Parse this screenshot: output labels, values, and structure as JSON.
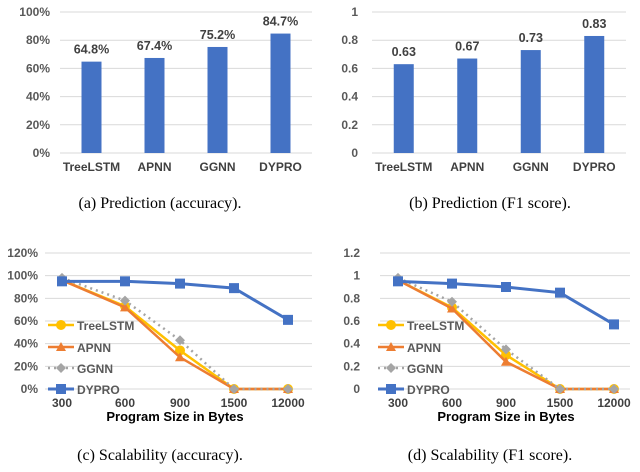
{
  "chart_data": [
    {
      "type": "bar",
      "caption": "(a) Prediction (accuracy).",
      "categories": [
        "TreeLSTM",
        "APNN",
        "GGNN",
        "DYPRO"
      ],
      "values": [
        64.8,
        67.4,
        75.2,
        84.7
      ],
      "data_labels": [
        "64.8%",
        "67.4%",
        "75.2%",
        "84.7%"
      ],
      "ylim": [
        0,
        100
      ],
      "yticks": [
        "0%",
        "20%",
        "40%",
        "60%",
        "80%",
        "100%"
      ],
      "grid": true,
      "color": "#4472C4"
    },
    {
      "type": "bar",
      "caption": "(b) Prediction (F1 score).",
      "categories": [
        "TreeLSTM",
        "APNN",
        "GGNN",
        "DYPRO"
      ],
      "values": [
        0.63,
        0.67,
        0.73,
        0.83
      ],
      "data_labels": [
        "0.63",
        "0.67",
        "0.73",
        "0.83"
      ],
      "ylim": [
        0,
        1
      ],
      "yticks": [
        "0",
        "0.2",
        "0.4",
        "0.6",
        "0.8",
        "1"
      ],
      "grid": true,
      "color": "#4472C4"
    },
    {
      "type": "line",
      "caption": "(c) Scalability (accuracy).",
      "xlabel": "Program Size in Bytes",
      "categories": [
        "300",
        "600",
        "900",
        "1500",
        "12000"
      ],
      "ylim": [
        0,
        120
      ],
      "yticks": [
        "0%",
        "20%",
        "40%",
        "60%",
        "80%",
        "100%",
        "120%"
      ],
      "grid": true,
      "legend": "left",
      "series": [
        {
          "name": "TreeLSTM",
          "values": [
            96,
            73,
            34,
            0,
            0
          ],
          "color": "#FFC000"
        },
        {
          "name": "APNN",
          "values": [
            96,
            72,
            28,
            0,
            0
          ],
          "color": "#ED7D31"
        },
        {
          "name": "GGNN",
          "values": [
            98,
            78,
            43,
            0,
            0
          ],
          "color": "#A5A5A5"
        },
        {
          "name": "DYPRO",
          "values": [
            95,
            95,
            93,
            89,
            61
          ],
          "color": "#4472C4"
        }
      ]
    },
    {
      "type": "line",
      "caption": "(d) Scalability (F1 score).",
      "xlabel": "Program Size in Bytes",
      "categories": [
        "300",
        "600",
        "900",
        "1500",
        "12000"
      ],
      "ylim": [
        0,
        1.2
      ],
      "yticks": [
        "0",
        "0.2",
        "0.4",
        "0.6",
        "0.8",
        "1",
        "1.2"
      ],
      "grid": true,
      "legend": "left",
      "series": [
        {
          "name": "TreeLSTM",
          "values": [
            0.96,
            0.72,
            0.3,
            0,
            0
          ],
          "color": "#FFC000"
        },
        {
          "name": "APNN",
          "values": [
            0.96,
            0.71,
            0.24,
            0,
            0
          ],
          "color": "#ED7D31"
        },
        {
          "name": "GGNN",
          "values": [
            0.98,
            0.77,
            0.35,
            0,
            0
          ],
          "color": "#A5A5A5"
        },
        {
          "name": "DYPRO",
          "values": [
            0.95,
            0.93,
            0.9,
            0.85,
            0.57
          ],
          "color": "#4472C4"
        }
      ]
    }
  ]
}
